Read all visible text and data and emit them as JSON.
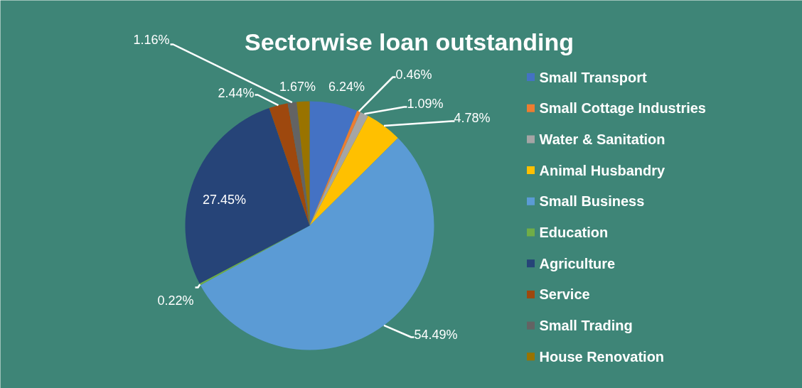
{
  "chart_data": {
    "type": "pie",
    "title": "Sectorwise loan outstanding",
    "categories": [
      "Small Transport",
      "Small Cottage Industries",
      "Water & Sanitation",
      "Animal Husbandry",
      "Small Business",
      "Education",
      "Agriculture",
      "Service",
      "Small Trading",
      "House Renovation"
    ],
    "values": [
      6.24,
      0.46,
      1.09,
      4.78,
      54.49,
      0.22,
      27.45,
      2.44,
      1.16,
      1.67
    ],
    "colors": [
      "#4472c4",
      "#ed7d31",
      "#a5a5a5",
      "#ffc000",
      "#5b9bd5",
      "#70ad47",
      "#264478",
      "#9e480e",
      "#636363",
      "#997300"
    ],
    "value_labels": [
      "6.24%",
      "0.46%",
      "1.09%",
      "4.78%",
      "54.49%",
      "0.22%",
      "27.45%",
      "2.44%",
      "1.16%",
      "1.67%"
    ],
    "legend": "right"
  }
}
